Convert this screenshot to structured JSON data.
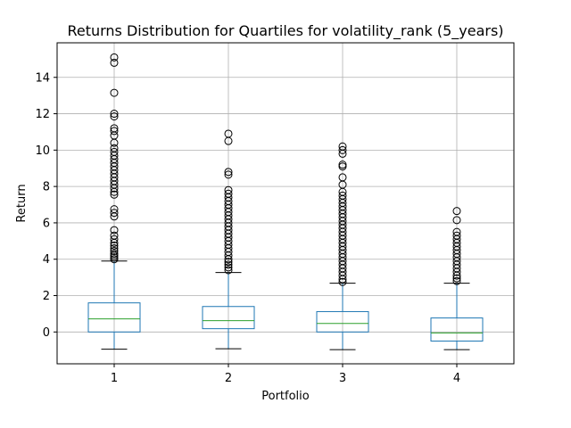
{
  "chart_data": {
    "type": "box",
    "title": "Returns Distribution for Quartiles for volatility_rank (5_years)",
    "xlabel": "Portfolio",
    "ylabel": "Return",
    "categories": [
      "1",
      "2",
      "3",
      "4"
    ],
    "ylim": [
      -1.75,
      15.9
    ],
    "yticks": [
      0,
      2,
      4,
      6,
      8,
      10,
      12,
      14
    ],
    "grid": true,
    "colors": {
      "box": "#1f77b4",
      "median": "#2ca02c",
      "whisker": "#1f77b4",
      "cap": "#000000",
      "outlier": "#000000",
      "grid": "#b0b0b0"
    },
    "boxes": [
      {
        "category": "1",
        "whisker_low": -0.95,
        "q1": 0.0,
        "median": 0.72,
        "q3": 1.6,
        "whisker_high": 3.9,
        "outliers": [
          15.1,
          14.8,
          13.15,
          12.0,
          11.85,
          11.2,
          11.05,
          10.8,
          10.4,
          10.1,
          9.9,
          9.7,
          9.5,
          9.3,
          9.1,
          8.9,
          8.7,
          8.5,
          8.3,
          8.1,
          7.9,
          7.7,
          7.55,
          6.75,
          6.55,
          6.35,
          5.6,
          5.3,
          5.1,
          4.9,
          4.75,
          4.6,
          4.45,
          4.3,
          4.2,
          4.1,
          4.0
        ]
      },
      {
        "category": "2",
        "whisker_low": -0.92,
        "q1": 0.18,
        "median": 0.62,
        "q3": 1.4,
        "whisker_high": 3.27,
        "outliers": [
          10.9,
          10.5,
          8.8,
          8.65,
          7.8,
          7.6,
          7.4,
          7.2,
          7.0,
          6.8,
          6.6,
          6.4,
          6.2,
          6.0,
          5.8,
          5.6,
          5.4,
          5.2,
          5.0,
          4.8,
          4.6,
          4.4,
          4.2,
          4.0,
          3.85,
          3.7,
          3.55,
          3.4
        ]
      },
      {
        "category": "3",
        "whisker_low": -0.97,
        "q1": 0.0,
        "median": 0.47,
        "q3": 1.12,
        "whisker_high": 2.68,
        "outliers": [
          10.2,
          10.0,
          9.8,
          9.2,
          9.1,
          8.5,
          8.1,
          7.7,
          7.5,
          7.3,
          7.1,
          6.9,
          6.7,
          6.5,
          6.3,
          6.1,
          5.9,
          5.7,
          5.5,
          5.3,
          5.1,
          4.9,
          4.7,
          4.5,
          4.3,
          4.1,
          3.9,
          3.7,
          3.5,
          3.3,
          3.1,
          2.9,
          2.75
        ]
      },
      {
        "category": "4",
        "whisker_low": -0.97,
        "q1": -0.5,
        "median": -0.05,
        "q3": 0.77,
        "whisker_high": 2.68,
        "outliers": [
          6.65,
          6.15,
          5.5,
          5.3,
          5.1,
          4.9,
          4.7,
          4.5,
          4.3,
          4.1,
          3.9,
          3.7,
          3.5,
          3.3,
          3.1,
          2.95,
          2.8
        ]
      }
    ]
  }
}
